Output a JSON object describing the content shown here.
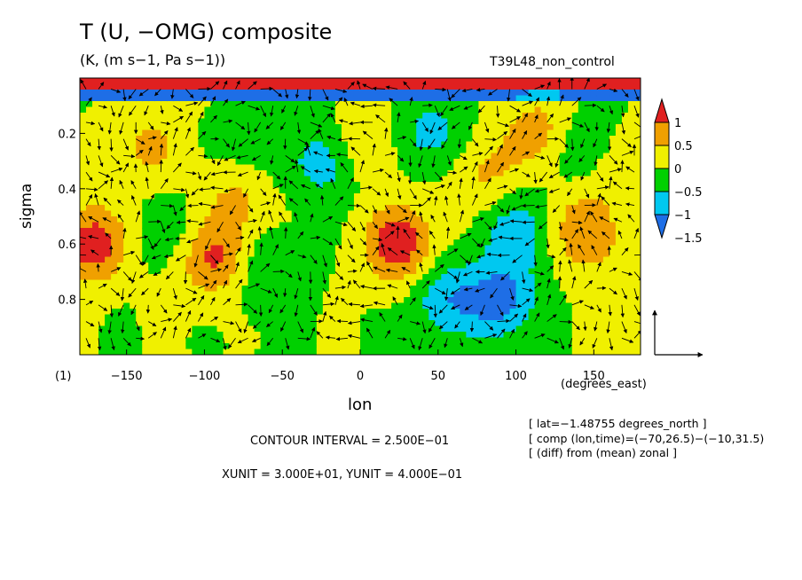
{
  "title": "T (U, −OMG) composite",
  "subtitle": "(K, (m s−1, Pa s−1))",
  "run_name": "T39L48_non_control",
  "panel_number": "(1)",
  "x_unit_label": "(degrees_east)",
  "info_lines": [
    "[ lat=−1.48755 degrees_north ]",
    "[ comp (lon,time)=(−70,26.5)−(−10,31.5)",
    "[ (diff) from (mean) zonal ]"
  ],
  "contour_interval": "CONTOUR INTERVAL = 2.500E−01",
  "units_note": "XUNIT = 3.000E+01, YUNIT = 4.000E−01",
  "colors": {
    "level_colors": [
      "#1e6ee6",
      "#00c8f0",
      "#00d000",
      "#f0f000",
      "#f0a000",
      "#e02020"
    ]
  },
  "chart_data": {
    "type": "heatmap",
    "title": "T (U, −OMG) composite",
    "xlabel": "lon",
    "ylabel": "sigma",
    "xlim": [
      -180,
      180
    ],
    "ylim": [
      0,
      1
    ],
    "y_inverted": true,
    "x_ticks": [
      -150,
      -100,
      -50,
      0,
      50,
      100,
      150
    ],
    "y_ticks": [
      0.2,
      0.4,
      0.6,
      0.8
    ],
    "colorbar": {
      "levels": [
        -1.5,
        -1,
        -0.5,
        0,
        0.5,
        1
      ],
      "tick_labels": [
        "1",
        "0.5",
        "0",
        "−0.5",
        "−1",
        "−1.5"
      ]
    },
    "vector_overlay": "wind vectors (U, −OMG)",
    "blobs": [
      {
        "lon": -172,
        "sigma": 0.6,
        "v": 1.3
      },
      {
        "lon": -135,
        "sigma": 0.25,
        "v": 0.6
      },
      {
        "lon": -95,
        "sigma": 0.65,
        "v": 1.1
      },
      {
        "lon": -80,
        "sigma": 0.45,
        "v": 0.6
      },
      {
        "lon": -120,
        "sigma": 0.55,
        "v": -0.4
      },
      {
        "lon": -70,
        "sigma": 0.22,
        "v": -0.4
      },
      {
        "lon": -20,
        "sigma": 0.3,
        "v": -0.9
      },
      {
        "lon": -60,
        "sigma": 0.7,
        "v": -0.5
      },
      {
        "lon": 0,
        "sigma": 0.25,
        "v": 0.7
      },
      {
        "lon": 25,
        "sigma": 0.6,
        "v": 1.4
      },
      {
        "lon": 55,
        "sigma": 0.8,
        "v": -0.9
      },
      {
        "lon": 45,
        "sigma": 0.2,
        "v": -0.7
      },
      {
        "lon": 90,
        "sigma": 0.8,
        "v": -1.2
      },
      {
        "lon": 100,
        "sigma": 0.55,
        "v": -0.8
      },
      {
        "lon": 80,
        "sigma": 0.35,
        "v": 0.6
      },
      {
        "lon": 115,
        "sigma": 0.2,
        "v": 0.8
      },
      {
        "lon": 140,
        "sigma": 0.25,
        "v": -0.5
      },
      {
        "lon": 145,
        "sigma": 0.55,
        "v": 1.0
      },
      {
        "lon": 170,
        "sigma": 0.8,
        "v": 0.4
      },
      {
        "lon": 160,
        "sigma": 0.3,
        "v": 0.2
      }
    ]
  }
}
